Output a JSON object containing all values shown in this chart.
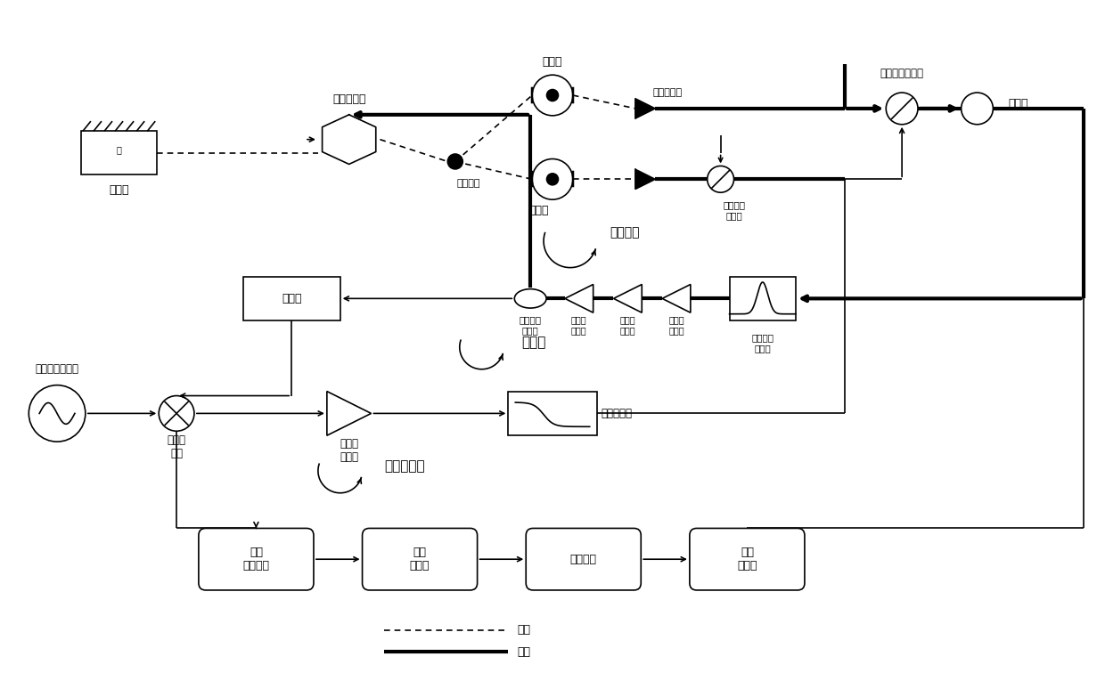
{
  "bg_color": "#ffffff",
  "line_color": "#000000",
  "figsize": [
    12.4,
    7.65
  ],
  "dpi": 100,
  "labels": {
    "laser": "激光器",
    "eom": "电光调制器",
    "coupler": "光耦合器",
    "short_fiber": "短光纤",
    "long_fiber": "长光纤",
    "pd": "光电探测器",
    "vco_small": "压控射频\n移相器",
    "vco_top": "压控射频移相器",
    "combiner": "合波器",
    "rf_bandpass": "射频带通\n滤波器",
    "lna": "低噪声\n放大器",
    "mw_coupler": "微波定向\n耦合器",
    "divider": "分频器",
    "osc_loop": "振荡环路",
    "pll": "锁相环",
    "freq_ctrl": "频率控制环",
    "ref_osc": "低频参考振荡器",
    "fd": "鉴频鉴\n相器",
    "ac_power": "交流\n功率检测",
    "adc": "模数\n转换器",
    "mcu": "微处理器",
    "dac": "数模\n转换器",
    "loop_filter": "环路滤波器",
    "lna_freq": "低噪声\n放大器",
    "optical_path": "光路",
    "electrical_path": "电路"
  }
}
